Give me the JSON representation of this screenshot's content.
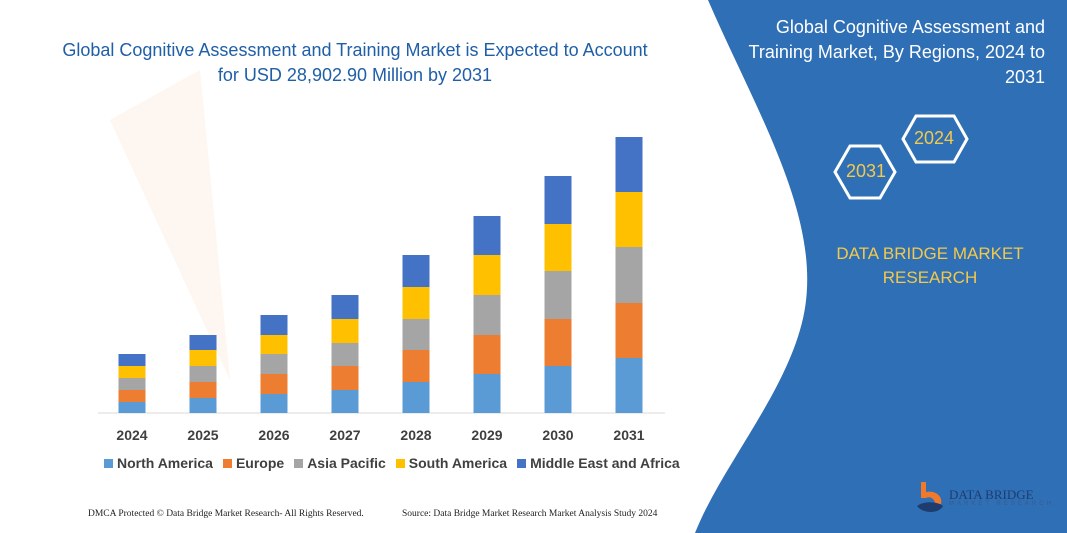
{
  "title": "Global Cognitive Assessment and Training Market is Expected to Account for USD 28,902.90 Million by 2031",
  "side_panel": {
    "title": "Global Cognitive Assessment and Training Market, By Regions, 2024 to 2031",
    "hex_start": "2024",
    "hex_end": "2031",
    "brand": "DATA BRIDGE MARKET RESEARCH",
    "logo_text": "DATA BRIDGE",
    "logo_sub": "MARKET RESEARCH",
    "panel_color": "#2f6fb5"
  },
  "footer": {
    "left": "DMCA Protected © Data Bridge Market Research- All Rights Reserved.",
    "right": "Source: Data Bridge Market Research Market Analysis Study 2024"
  },
  "chart_data": {
    "type": "bar",
    "stacked": true,
    "categories": [
      "2024",
      "2025",
      "2026",
      "2027",
      "2028",
      "2029",
      "2030",
      "2031"
    ],
    "series": [
      {
        "name": "North America",
        "color": "#5b9bd5",
        "values": [
          11,
          15,
          19,
          23,
          31,
          39,
          47,
          55
        ]
      },
      {
        "name": "Europe",
        "color": "#ed7d31",
        "values": [
          12,
          16,
          20,
          24,
          32,
          39,
          47,
          55
        ]
      },
      {
        "name": "Asia Pacific",
        "color": "#a5a5a5",
        "values": [
          12,
          16,
          20,
          23,
          31,
          40,
          48,
          56
        ]
      },
      {
        "name": "South America",
        "color": "#ffc000",
        "values": [
          12,
          16,
          19,
          24,
          32,
          40,
          47,
          55
        ]
      },
      {
        "name": "Middle East and Africa",
        "color": "#4472c4",
        "values": [
          12,
          15,
          20,
          24,
          32,
          39,
          48,
          55
        ]
      }
    ],
    "y_axis_shown": false,
    "grid": false,
    "legend_position": "bottom"
  }
}
